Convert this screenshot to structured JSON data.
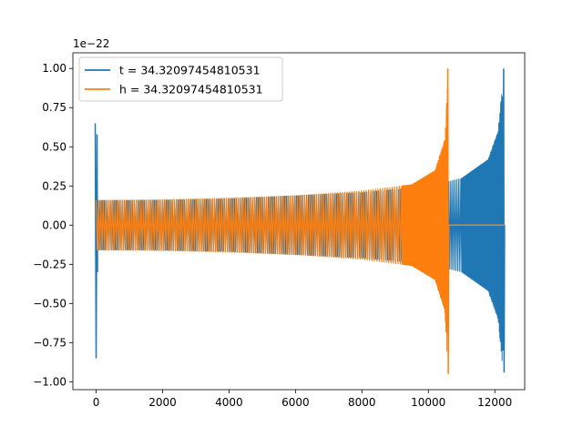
{
  "chart_data": {
    "type": "line",
    "title": "",
    "xlabel": "",
    "ylabel": "",
    "offset_text": "1e−22",
    "xlim": [
      -700,
      12900
    ],
    "ylim": [
      -1.05,
      1.1
    ],
    "xticks": [
      0,
      2000,
      4000,
      6000,
      8000,
      10000,
      12000
    ],
    "xtick_labels": [
      "0",
      "2000",
      "4000",
      "6000",
      "8000",
      "10000",
      "12000"
    ],
    "yticks": [
      -1.0,
      -0.75,
      -0.5,
      -0.25,
      0.0,
      0.25,
      0.5,
      0.75,
      1.0
    ],
    "ytick_labels": [
      "−1.00",
      "−0.75",
      "−0.50",
      "−0.25",
      "0.00",
      "0.25",
      "0.50",
      "0.75",
      "1.00"
    ],
    "grid": false,
    "legend_position": "upper-left",
    "series": [
      {
        "name": "t = 34.32097454810531",
        "color": "#1f77b4",
        "x_start": 0,
        "x_end": 12280,
        "initial_spike": {
          "x": 0,
          "max": 0.65,
          "min": -0.85
        },
        "flat_until": 1700,
        "envelope": {
          "x": [
            1700,
            4000,
            6000,
            8000,
            10000,
            11000,
            11800,
            12100,
            12280
          ],
          "amp": [
            0.16,
            0.17,
            0.19,
            0.21,
            0.25,
            0.3,
            0.42,
            0.6,
            1.0
          ]
        },
        "peak": {
          "x": 12280,
          "max": 1.0,
          "min": -0.94
        },
        "ends": 12300
      },
      {
        "name": "h = 34.32097454810531",
        "color": "#ff7f0e",
        "x_start": 0,
        "x_end": 10600,
        "envelope": {
          "x": [
            0,
            2000,
            4000,
            6000,
            8000,
            9500,
            10200,
            10500,
            10600
          ],
          "amp": [
            0.16,
            0.165,
            0.175,
            0.19,
            0.22,
            0.26,
            0.35,
            0.55,
            1.0
          ]
        },
        "flat_segment": [
          100,
          1700
        ],
        "peak": {
          "x": 10600,
          "max": 1.0,
          "min": -0.95
        },
        "flat_after": [
          10600,
          12280
        ]
      }
    ]
  }
}
